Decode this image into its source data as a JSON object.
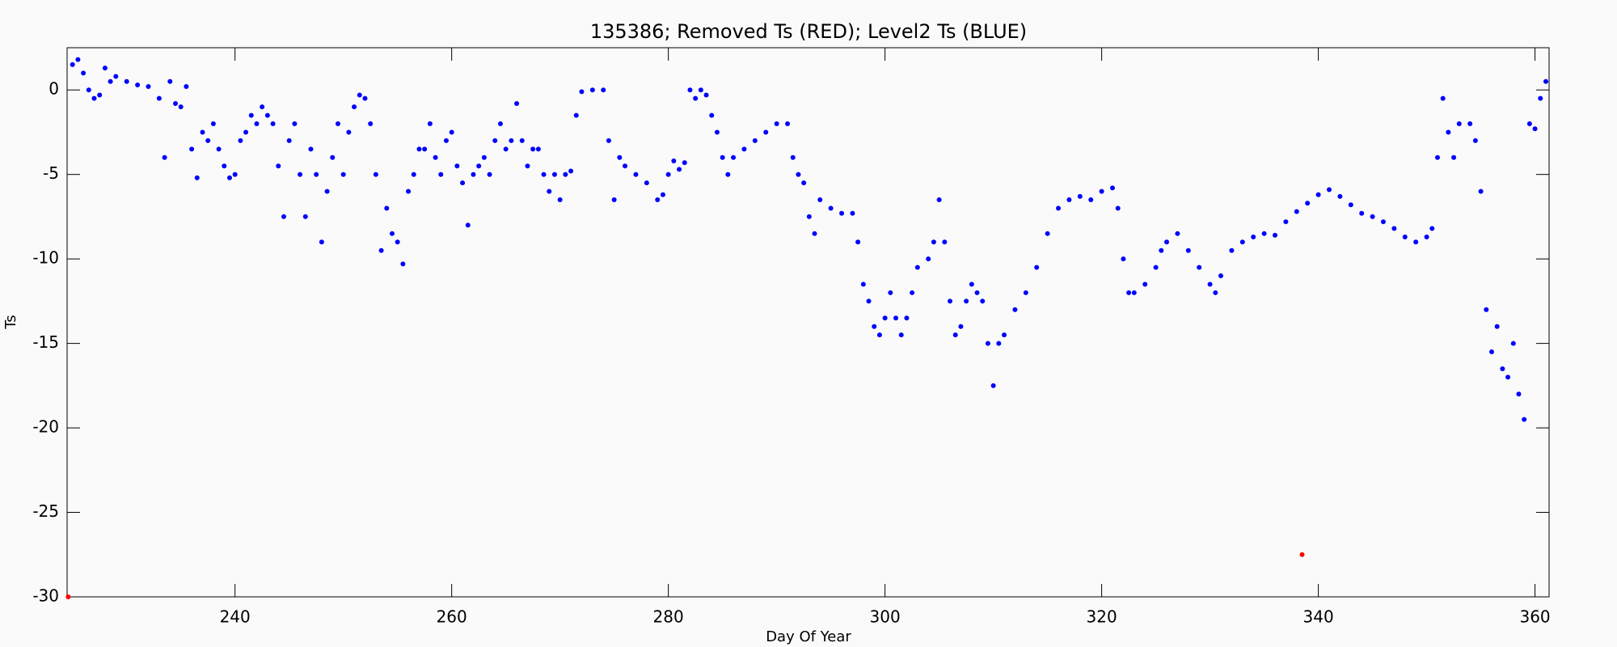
{
  "chart_data": {
    "type": "scatter",
    "title": "135386; Removed Ts (RED); Level2 Ts (BLUE)",
    "x_label": "Day Of Year",
    "y_label": "Ts",
    "xlim": [
      224.5,
      361.3
    ],
    "ylim": [
      -30,
      2.5
    ],
    "xticks": [
      240,
      260,
      280,
      300,
      320,
      340,
      360
    ],
    "yticks": [
      -30,
      -25,
      -20,
      -15,
      -10,
      -5,
      0
    ],
    "series": [
      {
        "color": "#ff0000",
        "x": [
          224.6,
          338.5
        ],
        "values": [
          -30,
          -27.5
        ]
      },
      {
        "color": "#0000ff",
        "x": [
          225,
          225.5,
          226,
          226.5,
          227,
          227.5,
          228,
          228.5,
          229,
          230,
          231,
          232,
          233,
          233.5,
          234,
          234.5,
          235,
          235.5,
          236,
          236.5,
          237,
          237.5,
          238,
          238.5,
          239,
          239.5,
          240,
          240.5,
          241,
          241.5,
          242,
          242.5,
          243,
          243.5,
          244,
          244.5,
          245,
          245.5,
          246,
          246.5,
          247,
          247.5,
          248,
          248.5,
          249,
          249.5,
          250,
          250.5,
          251,
          251.5,
          252,
          252.5,
          253,
          253.5,
          254,
          254.5,
          255,
          255.5,
          256,
          256.5,
          257,
          257.5,
          258,
          258.5,
          259,
          259.5,
          260,
          260.5,
          261,
          261.5,
          262,
          262.5,
          263,
          263.5,
          264,
          264.5,
          265,
          265.5,
          266,
          266.5,
          267,
          267.5,
          268,
          268.5,
          269,
          269.5,
          270,
          270.5,
          271,
          271.5,
          272,
          273,
          274,
          274.5,
          275,
          275.5,
          276,
          277,
          278,
          279,
          279.5,
          280,
          280.5,
          281,
          281.5,
          282,
          282.5,
          283,
          283.5,
          284,
          284.5,
          285,
          285.5,
          286,
          287,
          288,
          289,
          290,
          291,
          291.5,
          292,
          292.5,
          293,
          293.5,
          294,
          295,
          296,
          297,
          297.5,
          298,
          298.5,
          299,
          299.5,
          300,
          300.5,
          301,
          301.5,
          302,
          302.5,
          303,
          304,
          304.5,
          305,
          305.5,
          306,
          306.5,
          307,
          307.5,
          308,
          308.5,
          309,
          309.5,
          310,
          310.5,
          311,
          312,
          313,
          314,
          315,
          316,
          317,
          318,
          319,
          320,
          321,
          321.5,
          322,
          322.5,
          323,
          324,
          325,
          325.5,
          326,
          327,
          328,
          329,
          330,
          330.5,
          331,
          332,
          333,
          334,
          335,
          336,
          337,
          338,
          339,
          340,
          341,
          342,
          343,
          344,
          345,
          346,
          347,
          348,
          349,
          350,
          350.5,
          351,
          351.5,
          352,
          352.5,
          353,
          354,
          354.5,
          355,
          355.5,
          356,
          356.5,
          357,
          357.5,
          358,
          358.5,
          359,
          359.5,
          360,
          360.5,
          361
        ],
        "values": [
          1.5,
          1.8,
          1,
          0,
          -0.5,
          -0.3,
          1.3,
          0.5,
          0.8,
          0.5,
          0.3,
          0.2,
          -0.5,
          -4,
          0.5,
          -0.8,
          -1,
          0.2,
          -3.5,
          -5.2,
          -2.5,
          -3,
          -2,
          -3.5,
          -4.5,
          -5.2,
          -5,
          -3,
          -2.5,
          -1.5,
          -2,
          -1,
          -1.5,
          -2,
          -4.5,
          -7.5,
          -3,
          -2,
          -5,
          -7.5,
          -3.5,
          -5,
          -9,
          -6,
          -4,
          -2,
          -5,
          -2.5,
          -1,
          -0.3,
          -0.5,
          -2,
          -5,
          -9.5,
          -7,
          -8.5,
          -9,
          -10.3,
          -6,
          -5,
          -3.5,
          -3.5,
          -2,
          -4,
          -5,
          -3,
          -2.5,
          -4.5,
          -5.5,
          -8,
          -5,
          -4.5,
          -4,
          -5,
          -3,
          -2,
          -3.5,
          -3,
          -0.8,
          -3,
          -4.5,
          -3.5,
          -3.5,
          -5,
          -6,
          -5,
          -6.5,
          -5,
          -4.8,
          -1.5,
          -0.1,
          0,
          0,
          -3,
          -6.5,
          -4,
          -4.5,
          -5,
          -5.5,
          -6.5,
          -6.2,
          -5,
          -4.2,
          -4.7,
          -4.3,
          0,
          -0.5,
          0,
          -0.3,
          -1.5,
          -2.5,
          -4,
          -5,
          -4,
          -3.5,
          -3,
          -2.5,
          -2,
          -2,
          -4,
          -5,
          -5.5,
          -7.5,
          -8.5,
          -6.5,
          -7,
          -7.3,
          -7.3,
          -9,
          -11.5,
          -12.5,
          -14,
          -14.5,
          -13.5,
          -12,
          -13.5,
          -14.5,
          -13.5,
          -12,
          -10.5,
          -10,
          -9,
          -6.5,
          -9,
          -12.5,
          -14.5,
          -14,
          -12.5,
          -11.5,
          -12,
          -12.5,
          -15,
          -17.5,
          -15,
          -14.5,
          -13,
          -12,
          -10.5,
          -8.5,
          -7,
          -6.5,
          -6.3,
          -6.5,
          -6,
          -5.8,
          -7,
          -10,
          -12,
          -12,
          -11.5,
          -10.5,
          -9.5,
          -9,
          -8.5,
          -9.5,
          -10.5,
          -11.5,
          -12,
          -11,
          -9.5,
          -9,
          -8.7,
          -8.5,
          -8.6,
          -7.8,
          -7.2,
          -6.7,
          -6.2,
          -5.9,
          -6.3,
          -6.8,
          -7.3,
          -7.5,
          -7.8,
          -8.2,
          -8.7,
          -9,
          -8.7,
          -8.2,
          -4,
          -0.5,
          -2.5,
          -4,
          -2,
          -2,
          -3,
          -6,
          -13,
          -15.5,
          -14,
          -16.5,
          -17,
          -15,
          -18,
          -19.5,
          -2,
          -2.3,
          -0.5,
          0.5
        ]
      }
    ]
  }
}
